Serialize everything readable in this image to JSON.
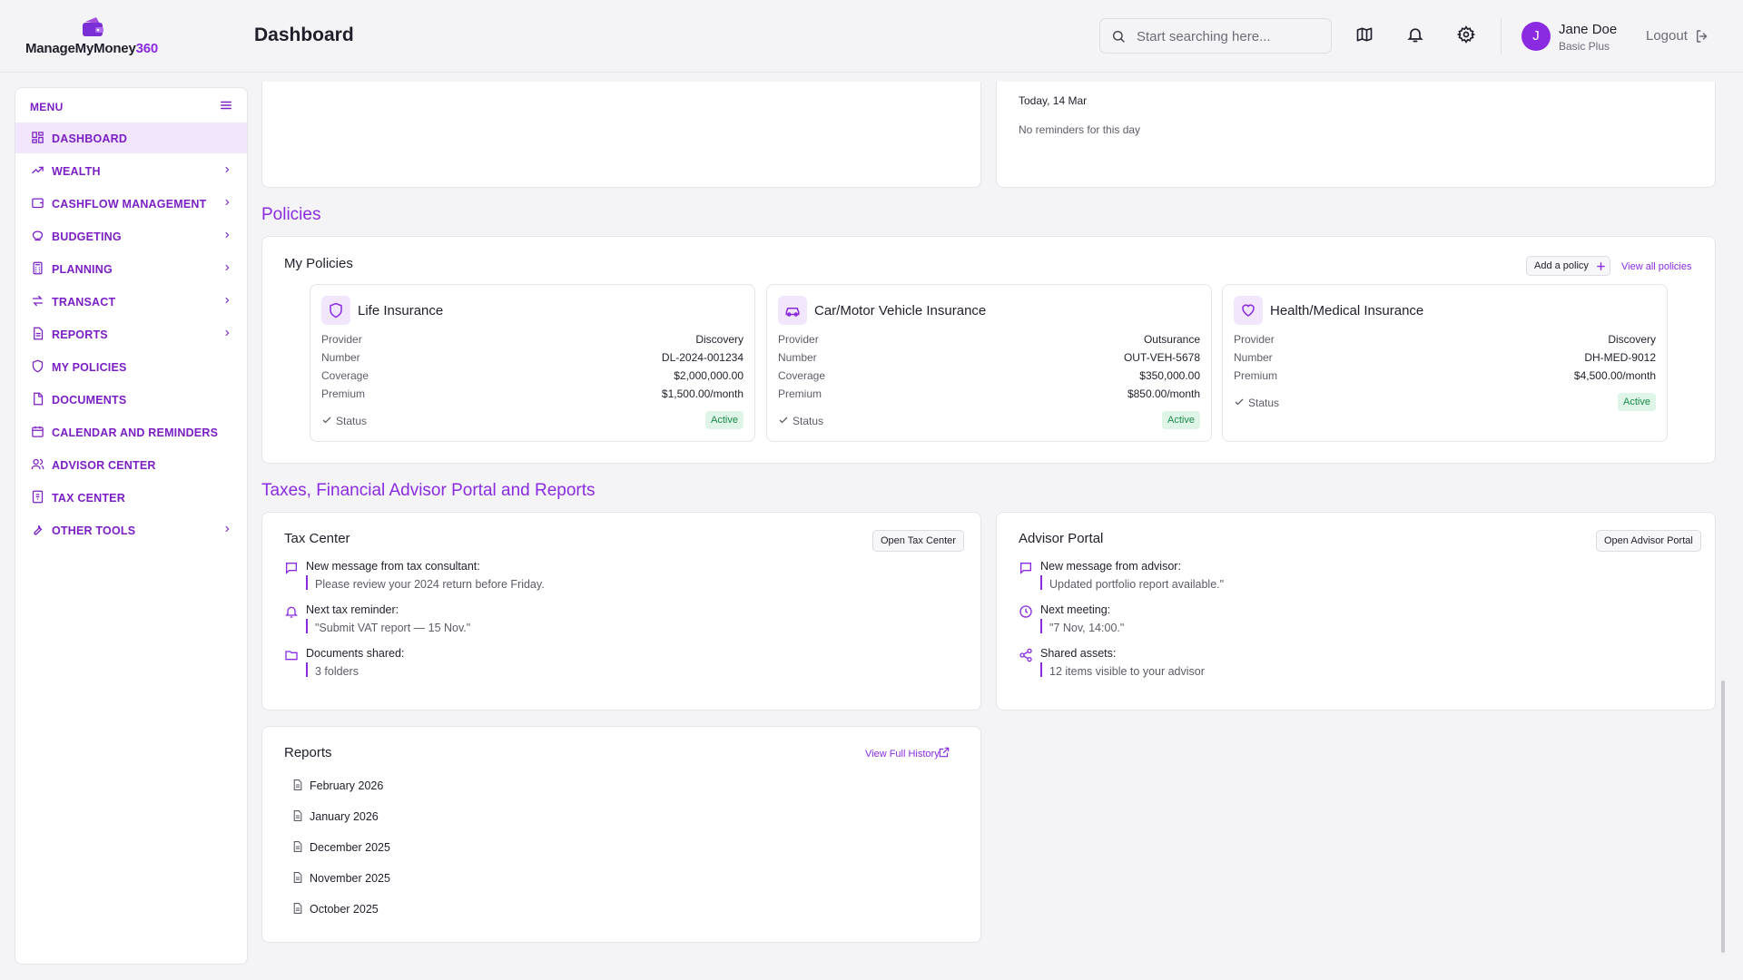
{
  "header": {
    "logo_text_main": "ManageMyMoney",
    "logo_text_accent": "360",
    "page_title": "Dashboard",
    "search_placeholder": "Start searching here...",
    "icons": [
      "map-icon",
      "bell-icon",
      "gear-icon"
    ],
    "user": {
      "initial": "J",
      "name": "Jane Doe",
      "plan": "Basic Plus"
    },
    "logout_label": "Logout"
  },
  "sidebar": {
    "heading": "MENU",
    "items": [
      {
        "label": "DASHBOARD",
        "icon": "dashboard-icon",
        "has_chevron": false,
        "active": true
      },
      {
        "label": "WEALTH",
        "icon": "trending-up-icon",
        "has_chevron": true
      },
      {
        "label": "CASHFLOW MANAGEMENT",
        "icon": "wallet-icon",
        "has_chevron": true
      },
      {
        "label": "BUDGETING",
        "icon": "piggy-bank-icon",
        "has_chevron": true
      },
      {
        "label": "PLANNING",
        "icon": "calculator-icon",
        "has_chevron": true
      },
      {
        "label": "TRANSACT",
        "icon": "transfer-icon",
        "has_chevron": true
      },
      {
        "label": "REPORTS",
        "icon": "report-icon",
        "has_chevron": true
      },
      {
        "label": "MY POLICIES",
        "icon": "shield-icon",
        "has_chevron": false
      },
      {
        "label": "DOCUMENTS",
        "icon": "document-icon",
        "has_chevron": false
      },
      {
        "label": "CALENDAR AND REMINDERS",
        "icon": "calendar-icon",
        "has_chevron": false
      },
      {
        "label": "ADVISOR CENTER",
        "icon": "users-icon",
        "has_chevron": false
      },
      {
        "label": "TAX CENTER",
        "icon": "receipt-icon",
        "has_chevron": false
      },
      {
        "label": "OTHER TOOLS",
        "icon": "wrench-icon",
        "has_chevron": true
      }
    ]
  },
  "reminders": {
    "date_label": "Today, 14 Mar",
    "empty_text": "No reminders for this day"
  },
  "policies": {
    "section_title": "Policies",
    "card_title": "My Policies",
    "add_label": "Add a policy",
    "view_all_label": "View all policies",
    "row_labels": {
      "provider": "Provider",
      "number": "Number",
      "coverage": "Coverage",
      "premium": "Premium",
      "status": "Status"
    },
    "items": [
      {
        "title": "Life Insurance",
        "icon": "shield-icon",
        "provider": "Discovery",
        "number": "DL-2024-001234",
        "coverage": "$2,000,000.00",
        "premium": "$1,500.00/month",
        "status": "Active"
      },
      {
        "title": "Car/Motor Vehicle Insurance",
        "icon": "car-icon",
        "provider": "Outsurance",
        "number": "OUT-VEH-5678",
        "coverage": "$350,000.00",
        "premium": "$850.00/month",
        "status": "Active"
      },
      {
        "title": "Health/Medical Insurance",
        "icon": "heart-icon",
        "provider": "Discovery",
        "number": "DH-MED-9012",
        "premium": "$4,500.00/month",
        "status": "Active"
      }
    ]
  },
  "taxes_section": {
    "section_title": "Taxes, Financial Advisor Portal and Reports",
    "tax_center": {
      "title": "Tax Center",
      "button": "Open Tax Center",
      "messages": [
        {
          "icon": "message-icon",
          "heading": "New message from tax consultant:",
          "body": "Please review your 2024 return before Friday."
        },
        {
          "icon": "bell-icon",
          "heading": "Next tax reminder:",
          "body": "\"Submit VAT report — 15 Nov.\""
        },
        {
          "icon": "folder-icon",
          "heading": "Documents shared:",
          "body": "3 folders"
        }
      ]
    },
    "advisor_portal": {
      "title": "Advisor Portal",
      "button": "Open Advisor Portal",
      "messages": [
        {
          "icon": "message-icon",
          "heading": "New message from advisor:",
          "body": "Updated portfolio report available.\""
        },
        {
          "icon": "clock-icon",
          "heading": "Next meeting:",
          "body": "\"7 Nov, 14:00.\""
        },
        {
          "icon": "share-icon",
          "heading": "Shared assets:",
          "body": "12 items visible to your advisor"
        }
      ]
    },
    "reports": {
      "title": "Reports",
      "history_link": "View Full History",
      "items": [
        "February 2026",
        "January 2026",
        "December 2025",
        "November 2025",
        "October 2025"
      ]
    }
  },
  "colors": {
    "accent": "#8a2be2",
    "active_bg": "#f1e6fc",
    "badge_green": "#1a8a4a"
  }
}
